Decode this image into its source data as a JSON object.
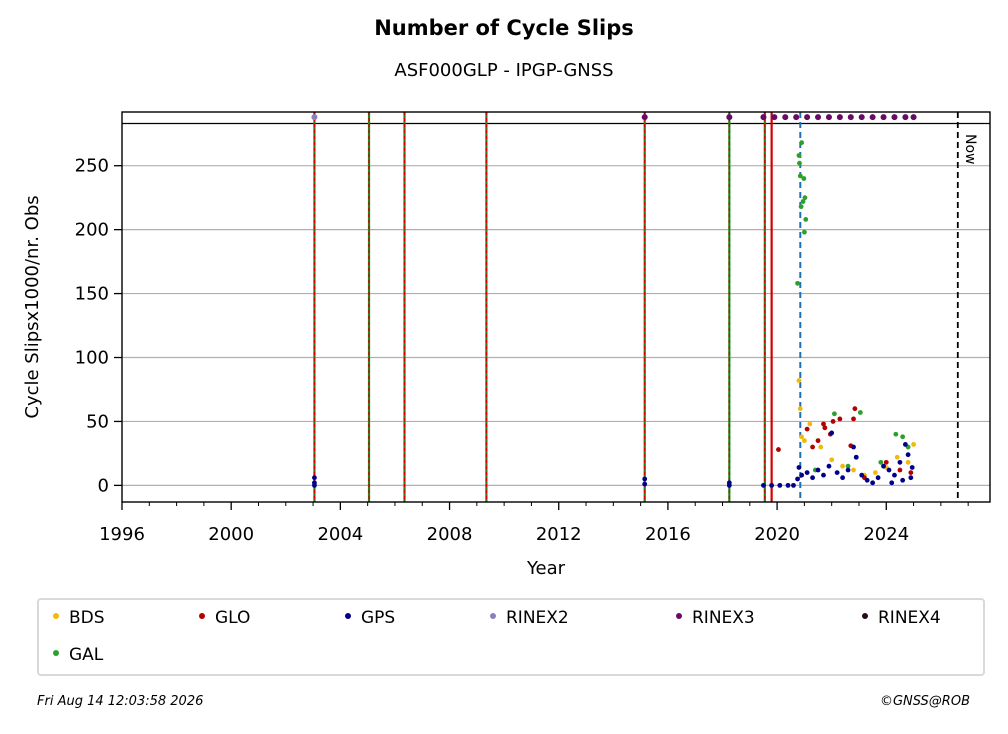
{
  "chart_data": {
    "type": "scatter",
    "title": "Number of Cycle Slips",
    "subtitle": "ASF000GLP - IPGP-GNSS",
    "xlabel": "Year",
    "ylabel": "Cycle Slipsx1000/nr. Obs",
    "xlim": [
      1996,
      2027.8
    ],
    "ylim": [
      -13,
      292
    ],
    "xticks": [
      1996,
      2000,
      2004,
      2008,
      2012,
      2016,
      2020,
      2024
    ],
    "yticks": [
      0,
      50,
      100,
      150,
      200,
      250
    ],
    "grid": "horizontal",
    "legend_position": "bottom",
    "colors": {
      "BDS": "#f2b90d",
      "GLO": "#b30000",
      "GPS": "#00008b",
      "RINEX2": "#8c7fc0",
      "RINEX3": "#6a0a66",
      "RINEX4": "#2a0a1e",
      "GAL": "#2ca02c",
      "vline_red": "#d40000",
      "vline_green": "#138a13",
      "vline_blue": "#1f6fb4"
    },
    "legend_order": [
      "BDS",
      "GLO",
      "GPS",
      "RINEX2",
      "RINEX3",
      "RINEX4",
      "GAL"
    ],
    "reference_line_y": 283,
    "now_line_x": 2026.62,
    "now_label": "Now",
    "event_lines": [
      {
        "x": 2003.05,
        "style": "green-red"
      },
      {
        "x": 2005.05,
        "style": "green-red"
      },
      {
        "x": 2006.35,
        "style": "green-red"
      },
      {
        "x": 2009.35,
        "style": "green-red"
      },
      {
        "x": 2015.15,
        "style": "green-red"
      },
      {
        "x": 2018.25,
        "style": "green-red"
      },
      {
        "x": 2019.55,
        "style": "green-red"
      },
      {
        "x": 2019.8,
        "style": "red"
      },
      {
        "x": 2020.85,
        "style": "blue-dash"
      }
    ],
    "series": [
      {
        "name": "RINEX2",
        "points": [
          [
            2003.05,
            288
          ]
        ]
      },
      {
        "name": "RINEX3",
        "points": [
          [
            2015.15,
            288
          ],
          [
            2018.25,
            288
          ],
          [
            2019.5,
            288
          ],
          [
            2019.9,
            288
          ],
          [
            2020.3,
            288
          ],
          [
            2020.7,
            288
          ],
          [
            2021.1,
            288
          ],
          [
            2021.5,
            288
          ],
          [
            2021.9,
            288
          ],
          [
            2022.3,
            288
          ],
          [
            2022.7,
            288
          ],
          [
            2023.1,
            288
          ],
          [
            2023.5,
            288
          ],
          [
            2023.9,
            288
          ],
          [
            2024.3,
            288
          ],
          [
            2024.7,
            288
          ],
          [
            2025.0,
            288
          ]
        ]
      },
      {
        "name": "GAL",
        "points": [
          [
            2020.75,
            158
          ],
          [
            2020.8,
            258
          ],
          [
            2020.85,
            242
          ],
          [
            2020.9,
            268
          ],
          [
            2020.95,
            222
          ],
          [
            2021.0,
            198
          ],
          [
            2021.05,
            208
          ],
          [
            2020.82,
            252
          ],
          [
            2020.88,
            218
          ],
          [
            2020.98,
            240
          ],
          [
            2021.02,
            225
          ],
          [
            2022.1,
            56
          ],
          [
            2023.05,
            57
          ],
          [
            2022.9,
            22
          ],
          [
            2024.35,
            40
          ],
          [
            2024.6,
            38
          ],
          [
            2024.8,
            30
          ],
          [
            2021.4,
            12
          ],
          [
            2022.6,
            15
          ],
          [
            2023.8,
            18
          ]
        ]
      },
      {
        "name": "BDS",
        "points": [
          [
            2020.8,
            82
          ],
          [
            2020.85,
            60
          ],
          [
            2020.9,
            38
          ],
          [
            2021.0,
            35
          ],
          [
            2021.2,
            48
          ],
          [
            2021.6,
            30
          ],
          [
            2022.0,
            20
          ],
          [
            2022.4,
            15
          ],
          [
            2022.8,
            12
          ],
          [
            2023.2,
            8
          ],
          [
            2023.6,
            10
          ],
          [
            2024.0,
            14
          ],
          [
            2024.4,
            22
          ],
          [
            2024.8,
            18
          ],
          [
            2025.0,
            32
          ]
        ]
      },
      {
        "name": "GLO",
        "points": [
          [
            2020.05,
            28
          ],
          [
            2021.1,
            44
          ],
          [
            2021.3,
            30
          ],
          [
            2021.5,
            35
          ],
          [
            2021.7,
            48
          ],
          [
            2021.75,
            45
          ],
          [
            2021.95,
            40
          ],
          [
            2022.05,
            50
          ],
          [
            2022.3,
            52
          ],
          [
            2022.7,
            31
          ],
          [
            2022.8,
            52
          ],
          [
            2022.85,
            60
          ],
          [
            2023.2,
            6
          ],
          [
            2024.0,
            18
          ],
          [
            2024.5,
            12
          ],
          [
            2024.9,
            10
          ]
        ]
      },
      {
        "name": "GPS",
        "points": [
          [
            2003.05,
            6
          ],
          [
            2003.05,
            2
          ],
          [
            2003.05,
            0
          ],
          [
            2015.15,
            5
          ],
          [
            2015.15,
            1
          ],
          [
            2018.25,
            2
          ],
          [
            2018.25,
            0
          ],
          [
            2019.5,
            0
          ],
          [
            2019.8,
            0
          ],
          [
            2020.1,
            0
          ],
          [
            2020.4,
            0
          ],
          [
            2020.6,
            0
          ],
          [
            2020.75,
            5
          ],
          [
            2020.8,
            14
          ],
          [
            2020.9,
            8
          ],
          [
            2021.1,
            10
          ],
          [
            2021.3,
            6
          ],
          [
            2021.5,
            12
          ],
          [
            2021.7,
            8
          ],
          [
            2021.9,
            15
          ],
          [
            2022.0,
            41
          ],
          [
            2022.2,
            10
          ],
          [
            2022.4,
            6
          ],
          [
            2022.6,
            12
          ],
          [
            2022.8,
            30
          ],
          [
            2022.9,
            22
          ],
          [
            2023.1,
            8
          ],
          [
            2023.3,
            4
          ],
          [
            2023.5,
            2
          ],
          [
            2023.7,
            6
          ],
          [
            2023.9,
            15
          ],
          [
            2024.1,
            12
          ],
          [
            2024.3,
            8
          ],
          [
            2024.5,
            18
          ],
          [
            2024.7,
            32
          ],
          [
            2024.8,
            24
          ],
          [
            2024.95,
            14
          ],
          [
            2024.9,
            6
          ],
          [
            2024.6,
            4
          ],
          [
            2024.2,
            2
          ]
        ]
      }
    ]
  },
  "legend": {
    "entries": [
      "BDS",
      "GLO",
      "GPS",
      "RINEX2",
      "RINEX3",
      "RINEX4",
      "GAL"
    ]
  },
  "footer": {
    "timestamp": "Fri Aug 14 12:03:58 2026",
    "credit": "©GNSS@ROB"
  }
}
